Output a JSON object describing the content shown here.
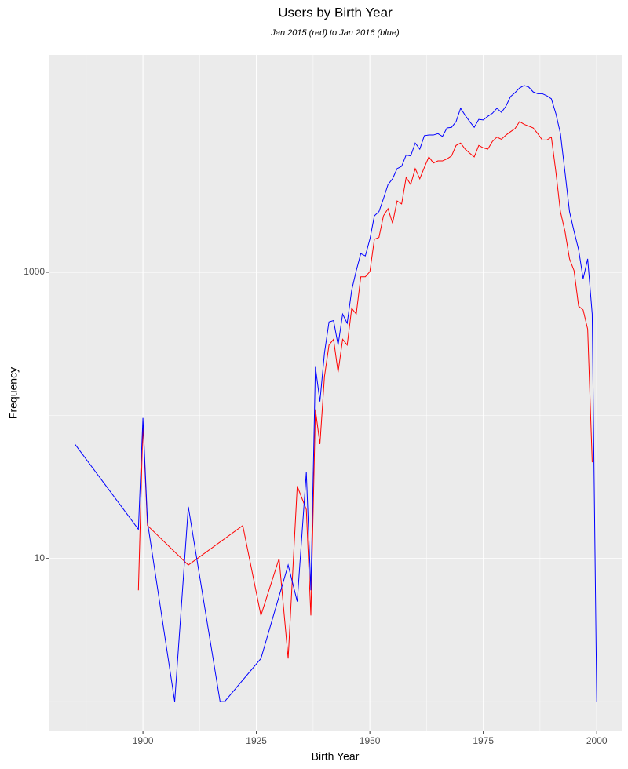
{
  "chart_data": {
    "type": "line",
    "title": "Users by Birth Year",
    "subtitle": "Jan 2015 (red) to Jan 2016 (blue)",
    "x_label": "Birth Year",
    "y_label": "Frequency",
    "xlim": [
      1879.4,
      2005.5
    ],
    "xticks": [
      1900,
      1925,
      1950,
      1975,
      2000
    ],
    "ylim": [
      0.62,
      33000
    ],
    "yticks": [
      10,
      1000
    ],
    "ylog": true,
    "grid": true,
    "series": [
      {
        "color": "#ff0000",
        "x": [
          1899,
          1900,
          1901,
          1910,
          1922,
          1926,
          1930,
          1932,
          1934,
          1936,
          1937,
          1938,
          1939,
          1940,
          1941,
          1942,
          1943,
          1944,
          1945,
          1946,
          1947,
          1948,
          1949,
          1950,
          1951,
          1952,
          1953,
          1954,
          1955,
          1956,
          1957,
          1958,
          1959,
          1960,
          1961,
          1962,
          1963,
          1964,
          1965,
          1966,
          1967,
          1968,
          1969,
          1970,
          1971,
          1972,
          1973,
          1974,
          1975,
          1976,
          1977,
          1978,
          1979,
          1980,
          1981,
          1982,
          1983,
          1984,
          1985,
          1986,
          1987,
          1988,
          1989,
          1990,
          1991,
          1992,
          1993,
          1994,
          1995,
          1996,
          1997,
          1998,
          1999
        ],
        "values": [
          6,
          86,
          17,
          9,
          17,
          4,
          10,
          2,
          32,
          22,
          4,
          110,
          63,
          187,
          310,
          340,
          200,
          340,
          310,
          560,
          510,
          930,
          930,
          1010,
          1700,
          1750,
          2480,
          2780,
          2200,
          3150,
          3000,
          4600,
          4100,
          5300,
          4500,
          5400,
          6400,
          5800,
          6000,
          6000,
          6200,
          6500,
          7700,
          8000,
          7250,
          6800,
          6400,
          7700,
          7400,
          7250,
          8200,
          8800,
          8500,
          9100,
          9600,
          10100,
          11300,
          10800,
          10500,
          10200,
          9300,
          8400,
          8400,
          8800,
          5000,
          2650,
          1930,
          1240,
          1025,
          580,
          545,
          400,
          47
        ]
      },
      {
        "color": "#0000ff",
        "x": [
          1885,
          1899,
          1900,
          1901,
          1907,
          1910,
          1917,
          1918,
          1926,
          1932,
          1934,
          1936,
          1937,
          1938,
          1939,
          1940,
          1941,
          1942,
          1943,
          1944,
          1945,
          1946,
          1947,
          1948,
          1949,
          1950,
          1951,
          1952,
          1953,
          1954,
          1955,
          1956,
          1957,
          1958,
          1959,
          1960,
          1961,
          1962,
          1963,
          1964,
          1965,
          1966,
          1967,
          1968,
          1969,
          1970,
          1971,
          1972,
          1973,
          1974,
          1975,
          1976,
          1977,
          1978,
          1979,
          1980,
          1981,
          1982,
          1983,
          1984,
          1985,
          1986,
          1987,
          1988,
          1989,
          1990,
          1991,
          1992,
          1993,
          1994,
          1995,
          1996,
          1997,
          1998,
          1999,
          2000
        ],
        "values": [
          63,
          16,
          96,
          18,
          1,
          23,
          1,
          1,
          2,
          9,
          5,
          40,
          6,
          218,
          125,
          273,
          450,
          460,
          310,
          510,
          440,
          750,
          1025,
          1350,
          1300,
          1700,
          2480,
          2650,
          3270,
          4100,
          4500,
          5300,
          5500,
          6600,
          6500,
          8000,
          7250,
          9000,
          9100,
          9100,
          9300,
          8900,
          10200,
          10300,
          11300,
          14000,
          12500,
          11300,
          10300,
          11700,
          11600,
          12300,
          12900,
          14000,
          13100,
          14500,
          16900,
          18000,
          19400,
          20200,
          19700,
          18200,
          17700,
          17700,
          17100,
          16300,
          12800,
          9300,
          5000,
          2650,
          1930,
          1440,
          900,
          1240,
          510,
          1
        ]
      }
    ]
  }
}
